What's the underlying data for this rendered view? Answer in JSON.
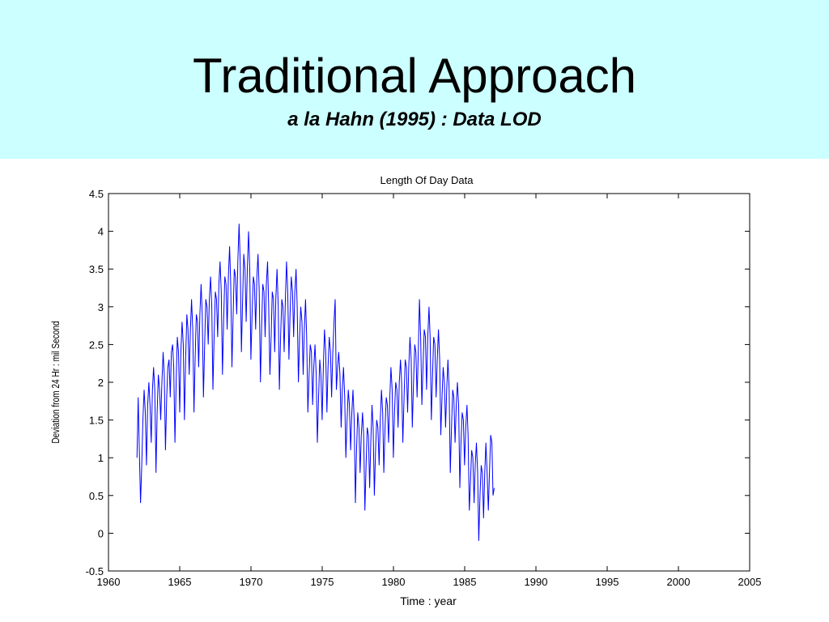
{
  "slide": {
    "title": "Traditional Approach",
    "subtitle": "a la Hahn  (1995)  : Data LOD",
    "band_color": "#ccffff"
  },
  "chart_data": {
    "type": "line",
    "title": "Length Of Day Data",
    "xlabel": "Time : year",
    "ylabel": "Deviation from 24 Hr : mil Second",
    "xlim": [
      1960,
      2005
    ],
    "ylim": [
      -0.5,
      4.5
    ],
    "x_ticks": [
      "1960",
      "1965",
      "1970",
      "1975",
      "1980",
      "1985",
      "1990",
      "1995",
      "2000",
      "2005"
    ],
    "y_ticks": [
      "-0.5",
      "0",
      "0.5",
      "1",
      "1.5",
      "2",
      "2.5",
      "3",
      "3.5",
      "4",
      "4.5"
    ],
    "grid": false,
    "series_color": "#0000ff",
    "sample_step_years": 0.0833,
    "x_start": 1962.0,
    "series": [
      {
        "values": [
          1.0,
          1.8,
          1.1,
          0.4,
          0.9,
          1.5,
          1.9,
          1.6,
          0.9,
          1.7,
          2.0,
          1.7,
          1.2,
          1.9,
          2.2,
          1.9,
          0.8,
          1.6,
          2.1,
          1.9,
          1.5,
          2.0,
          2.4,
          2.1,
          1.1,
          1.8,
          2.2,
          2.3,
          1.8,
          2.4,
          2.5,
          2.2,
          1.2,
          2.0,
          2.6,
          2.4,
          1.6,
          2.4,
          2.8,
          2.5,
          1.5,
          2.3,
          2.9,
          2.7,
          2.1,
          2.7,
          3.1,
          2.7,
          1.6,
          2.3,
          2.9,
          2.8,
          2.2,
          2.9,
          3.3,
          2.9,
          1.8,
          2.5,
          3.1,
          3.0,
          2.5,
          3.1,
          3.4,
          3.0,
          1.9,
          2.6,
          3.2,
          3.1,
          2.6,
          3.3,
          3.6,
          3.2,
          2.1,
          2.8,
          3.4,
          3.3,
          2.7,
          3.4,
          3.8,
          3.3,
          2.2,
          2.9,
          3.5,
          3.4,
          2.9,
          3.6,
          4.1,
          3.6,
          2.4,
          3.1,
          3.7,
          3.5,
          2.8,
          3.5,
          4.0,
          3.5,
          2.3,
          2.9,
          3.4,
          3.3,
          2.7,
          3.4,
          3.7,
          3.2,
          2.0,
          2.7,
          3.3,
          3.2,
          2.6,
          3.3,
          3.6,
          3.0,
          2.1,
          2.6,
          3.2,
          3.1,
          2.4,
          3.1,
          3.5,
          3.0,
          1.9,
          2.6,
          3.1,
          3.0,
          2.4,
          3.1,
          3.6,
          3.2,
          2.3,
          2.9,
          3.4,
          3.2,
          2.6,
          3.2,
          3.5,
          3.0,
          2.0,
          2.6,
          3.0,
          2.8,
          2.1,
          2.7,
          3.1,
          2.6,
          1.6,
          2.1,
          2.5,
          2.4,
          1.7,
          2.2,
          2.5,
          2.1,
          1.2,
          1.8,
          2.3,
          2.1,
          1.5,
          2.2,
          2.7,
          2.4,
          1.6,
          2.2,
          2.6,
          2.4,
          1.8,
          2.4,
          2.8,
          3.1,
          1.9,
          2.2,
          2.4,
          2.1,
          1.4,
          1.9,
          2.2,
          1.8,
          1.0,
          1.5,
          1.9,
          1.7,
          1.1,
          1.6,
          1.9,
          1.5,
          0.4,
          1.1,
          1.6,
          1.4,
          0.8,
          1.3,
          1.6,
          1.3,
          0.3,
          0.9,
          1.4,
          1.3,
          0.6,
          1.2,
          1.7,
          1.4,
          0.5,
          1.1,
          1.5,
          1.4,
          0.9,
          1.5,
          1.9,
          1.6,
          0.8,
          1.4,
          1.8,
          1.7,
          1.2,
          1.8,
          2.2,
          1.9,
          1.0,
          1.6,
          2.0,
          1.9,
          1.4,
          2.0,
          2.3,
          2.0,
          1.2,
          1.8,
          2.3,
          2.2,
          1.6,
          2.2,
          2.6,
          2.3,
          1.4,
          2.0,
          2.5,
          2.4,
          1.8,
          2.4,
          3.1,
          2.6,
          1.7,
          2.2,
          2.7,
          2.6,
          1.9,
          2.6,
          3.0,
          2.6,
          1.5,
          2.1,
          2.6,
          2.5,
          1.8,
          2.3,
          2.7,
          2.3,
          1.3,
          1.8,
          2.2,
          2.0,
          1.4,
          1.9,
          2.3,
          1.9,
          0.8,
          1.4,
          1.9,
          1.8,
          1.2,
          1.7,
          2.0,
          1.7,
          0.6,
          1.2,
          1.6,
          1.5,
          0.9,
          1.4,
          1.7,
          1.3,
          0.3,
          0.7,
          1.1,
          1.0,
          0.4,
          0.9,
          1.2,
          0.8,
          -0.1,
          0.5,
          0.9,
          0.8,
          0.2,
          0.8,
          1.2,
          0.8,
          0.3,
          0.8,
          1.3,
          1.2,
          0.5,
          0.6
        ]
      }
    ]
  }
}
